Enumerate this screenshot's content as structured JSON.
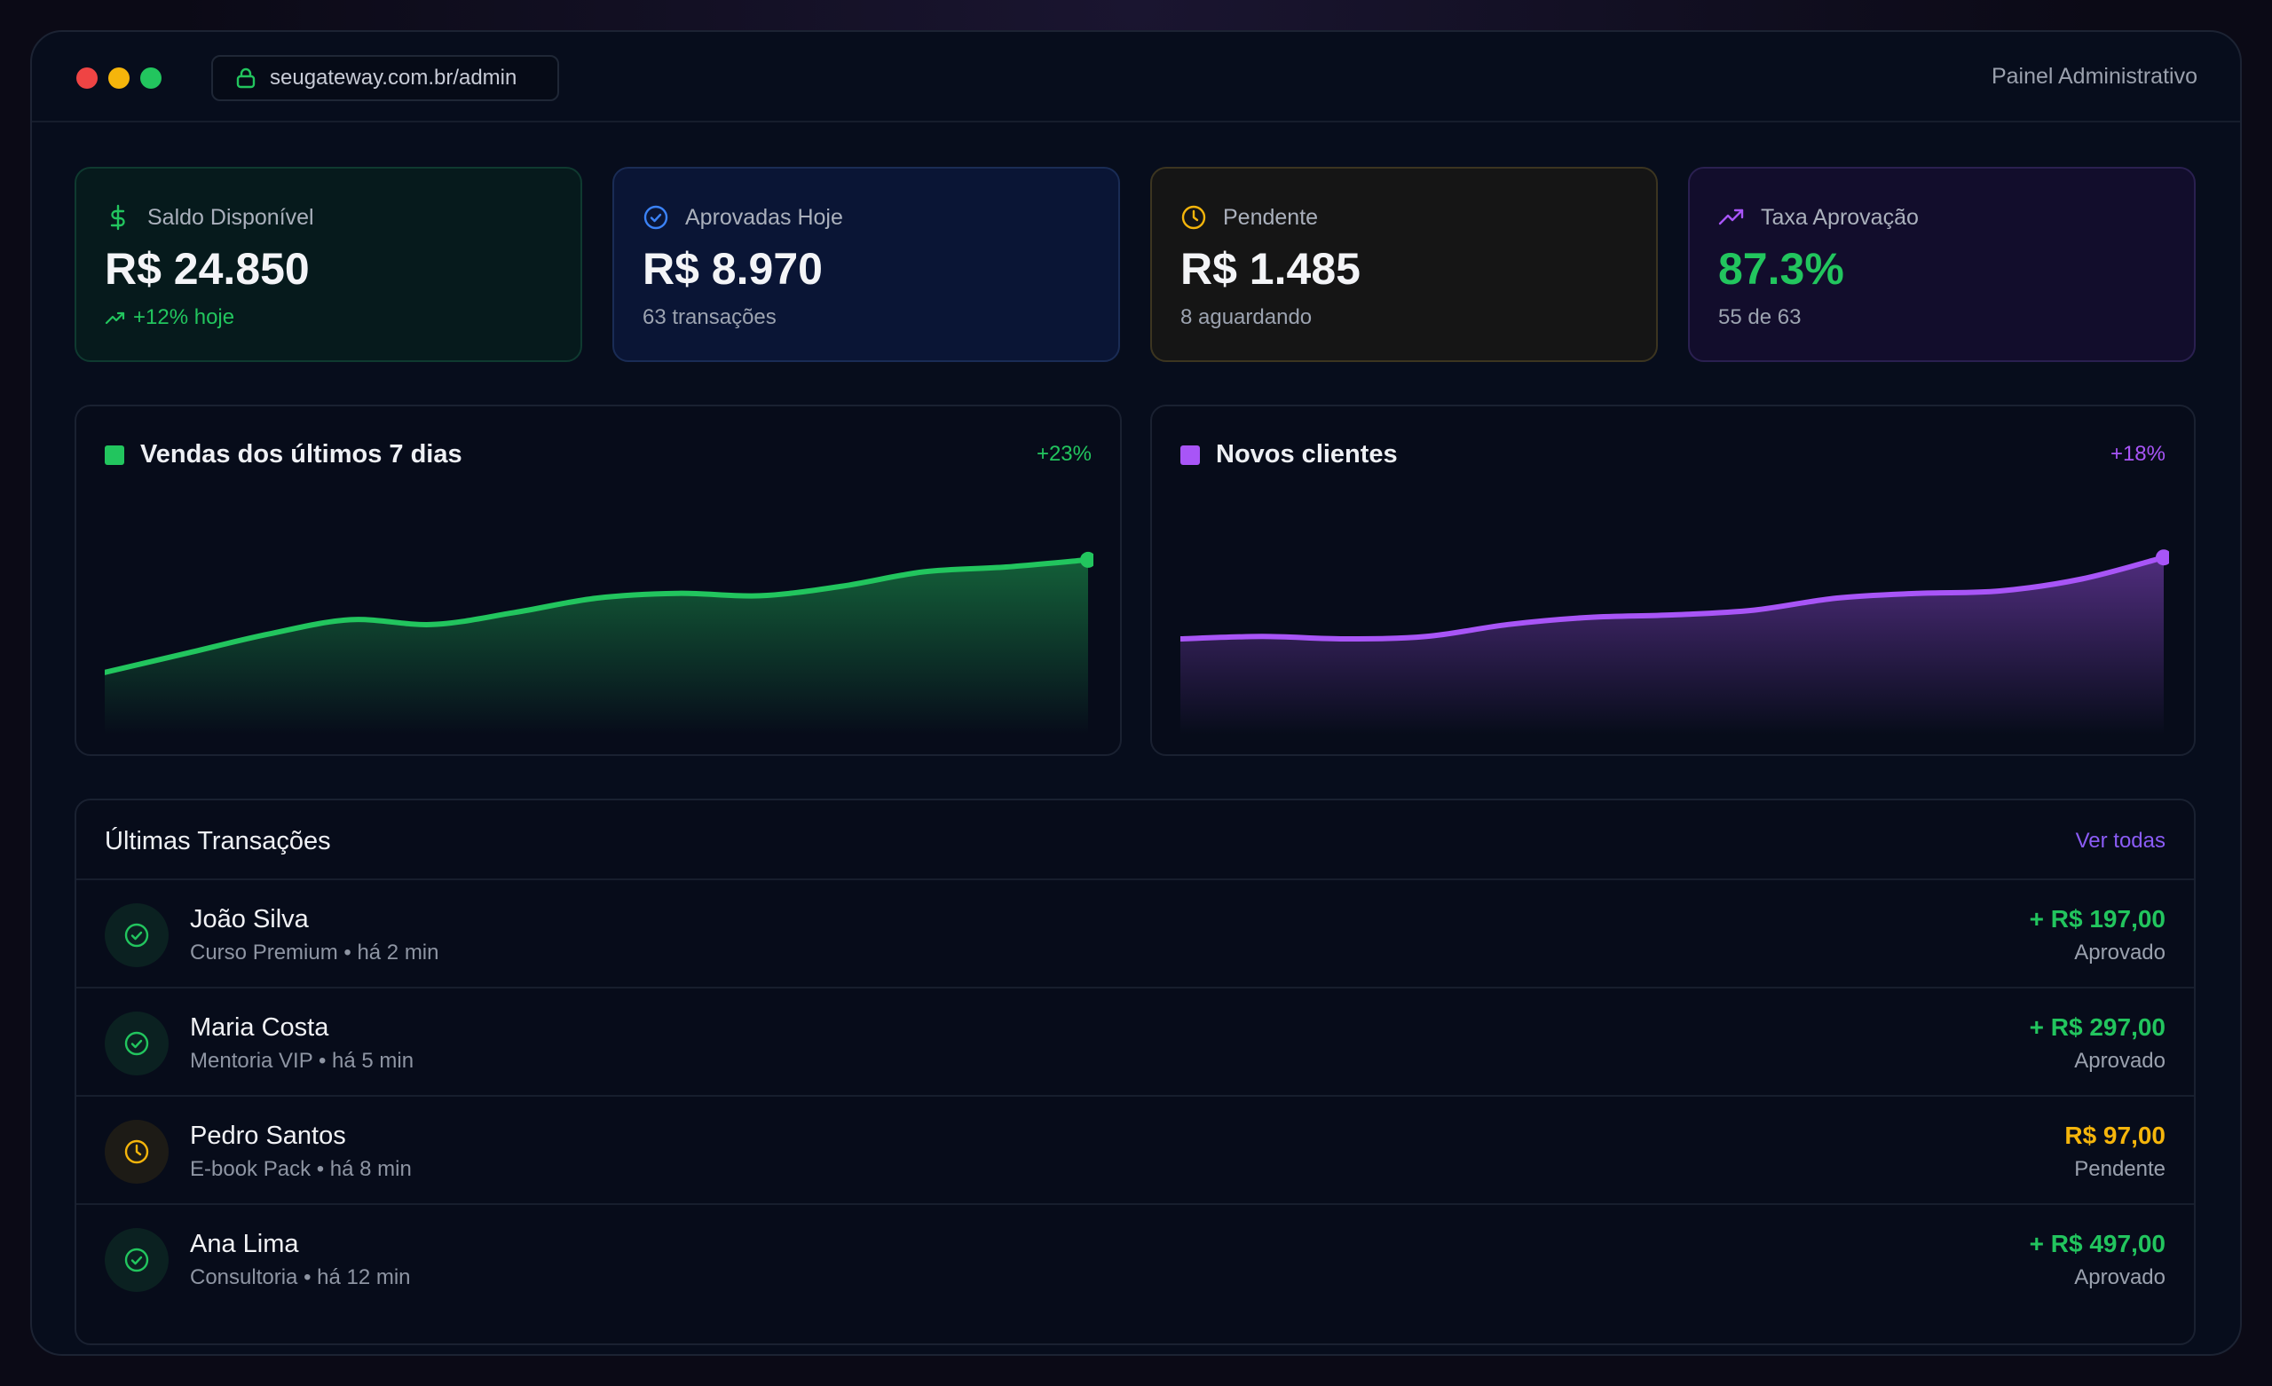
{
  "browser": {
    "url": "seugateway.com.br/admin",
    "right_label": "Painel Administrativo"
  },
  "stats": [
    {
      "icon": "dollar-icon",
      "label": "Saldo Disponível",
      "value": "R$ 24.850",
      "sub": "+12% hoje",
      "accent": "#22c55e"
    },
    {
      "icon": "check-circle-icon",
      "label": "Aprovadas Hoje",
      "value": "R$ 8.970",
      "sub": "63 transações",
      "accent": "#3b82f6"
    },
    {
      "icon": "clock-icon",
      "label": "Pendente",
      "value": "R$ 1.485",
      "sub": "8 aguardando",
      "accent": "#f5b50b"
    },
    {
      "icon": "trending-up-icon",
      "label": "Taxa Aprovação",
      "value": "87.3%",
      "sub": "55 de 63",
      "accent": "#a855f7"
    }
  ],
  "charts": [
    {
      "title": "Vendas dos últimos 7 dias",
      "change": "+23%",
      "color": "#22c55e"
    },
    {
      "title": "Novos clientes",
      "change": "+18%",
      "color": "#a855f7"
    }
  ],
  "chart_data": [
    {
      "type": "area",
      "title": "Vendas dos últimos 7 dias",
      "x": [
        1,
        2,
        3,
        4,
        5,
        6,
        7,
        8,
        9,
        10,
        11,
        12,
        13
      ],
      "values": [
        26,
        34,
        42,
        48,
        46,
        51,
        57,
        59,
        58,
        62,
        68,
        70,
        73
      ],
      "ylim": [
        0,
        100
      ]
    },
    {
      "type": "area",
      "title": "Novos clientes",
      "x": [
        1,
        2,
        3,
        4,
        5,
        6,
        7,
        8,
        9,
        10,
        11,
        12,
        13
      ],
      "values": [
        40,
        41,
        40,
        41,
        46,
        49,
        50,
        52,
        57,
        59,
        60,
        65,
        74
      ],
      "ylim": [
        0,
        100
      ]
    }
  ],
  "transactions": {
    "title": "Últimas Transações",
    "link": "Ver todas",
    "rows": [
      {
        "name": "João Silva",
        "meta": "Curso Premium • há 2 min",
        "amount": "+ R$ 197,00",
        "status": "Aprovado",
        "state": "ok"
      },
      {
        "name": "Maria Costa",
        "meta": "Mentoria VIP • há 5 min",
        "amount": "+ R$ 297,00",
        "status": "Aprovado",
        "state": "ok"
      },
      {
        "name": "Pedro Santos",
        "meta": "E-book Pack • há 8 min",
        "amount": "R$ 97,00",
        "status": "Pendente",
        "state": "pending"
      },
      {
        "name": "Ana Lima",
        "meta": "Consultoria • há 12 min",
        "amount": "+ R$ 497,00",
        "status": "Aprovado",
        "state": "ok"
      }
    ]
  },
  "colors": {
    "approved": "#22c55e",
    "pending": "#f5b50b",
    "link": "#8b5cf6"
  }
}
